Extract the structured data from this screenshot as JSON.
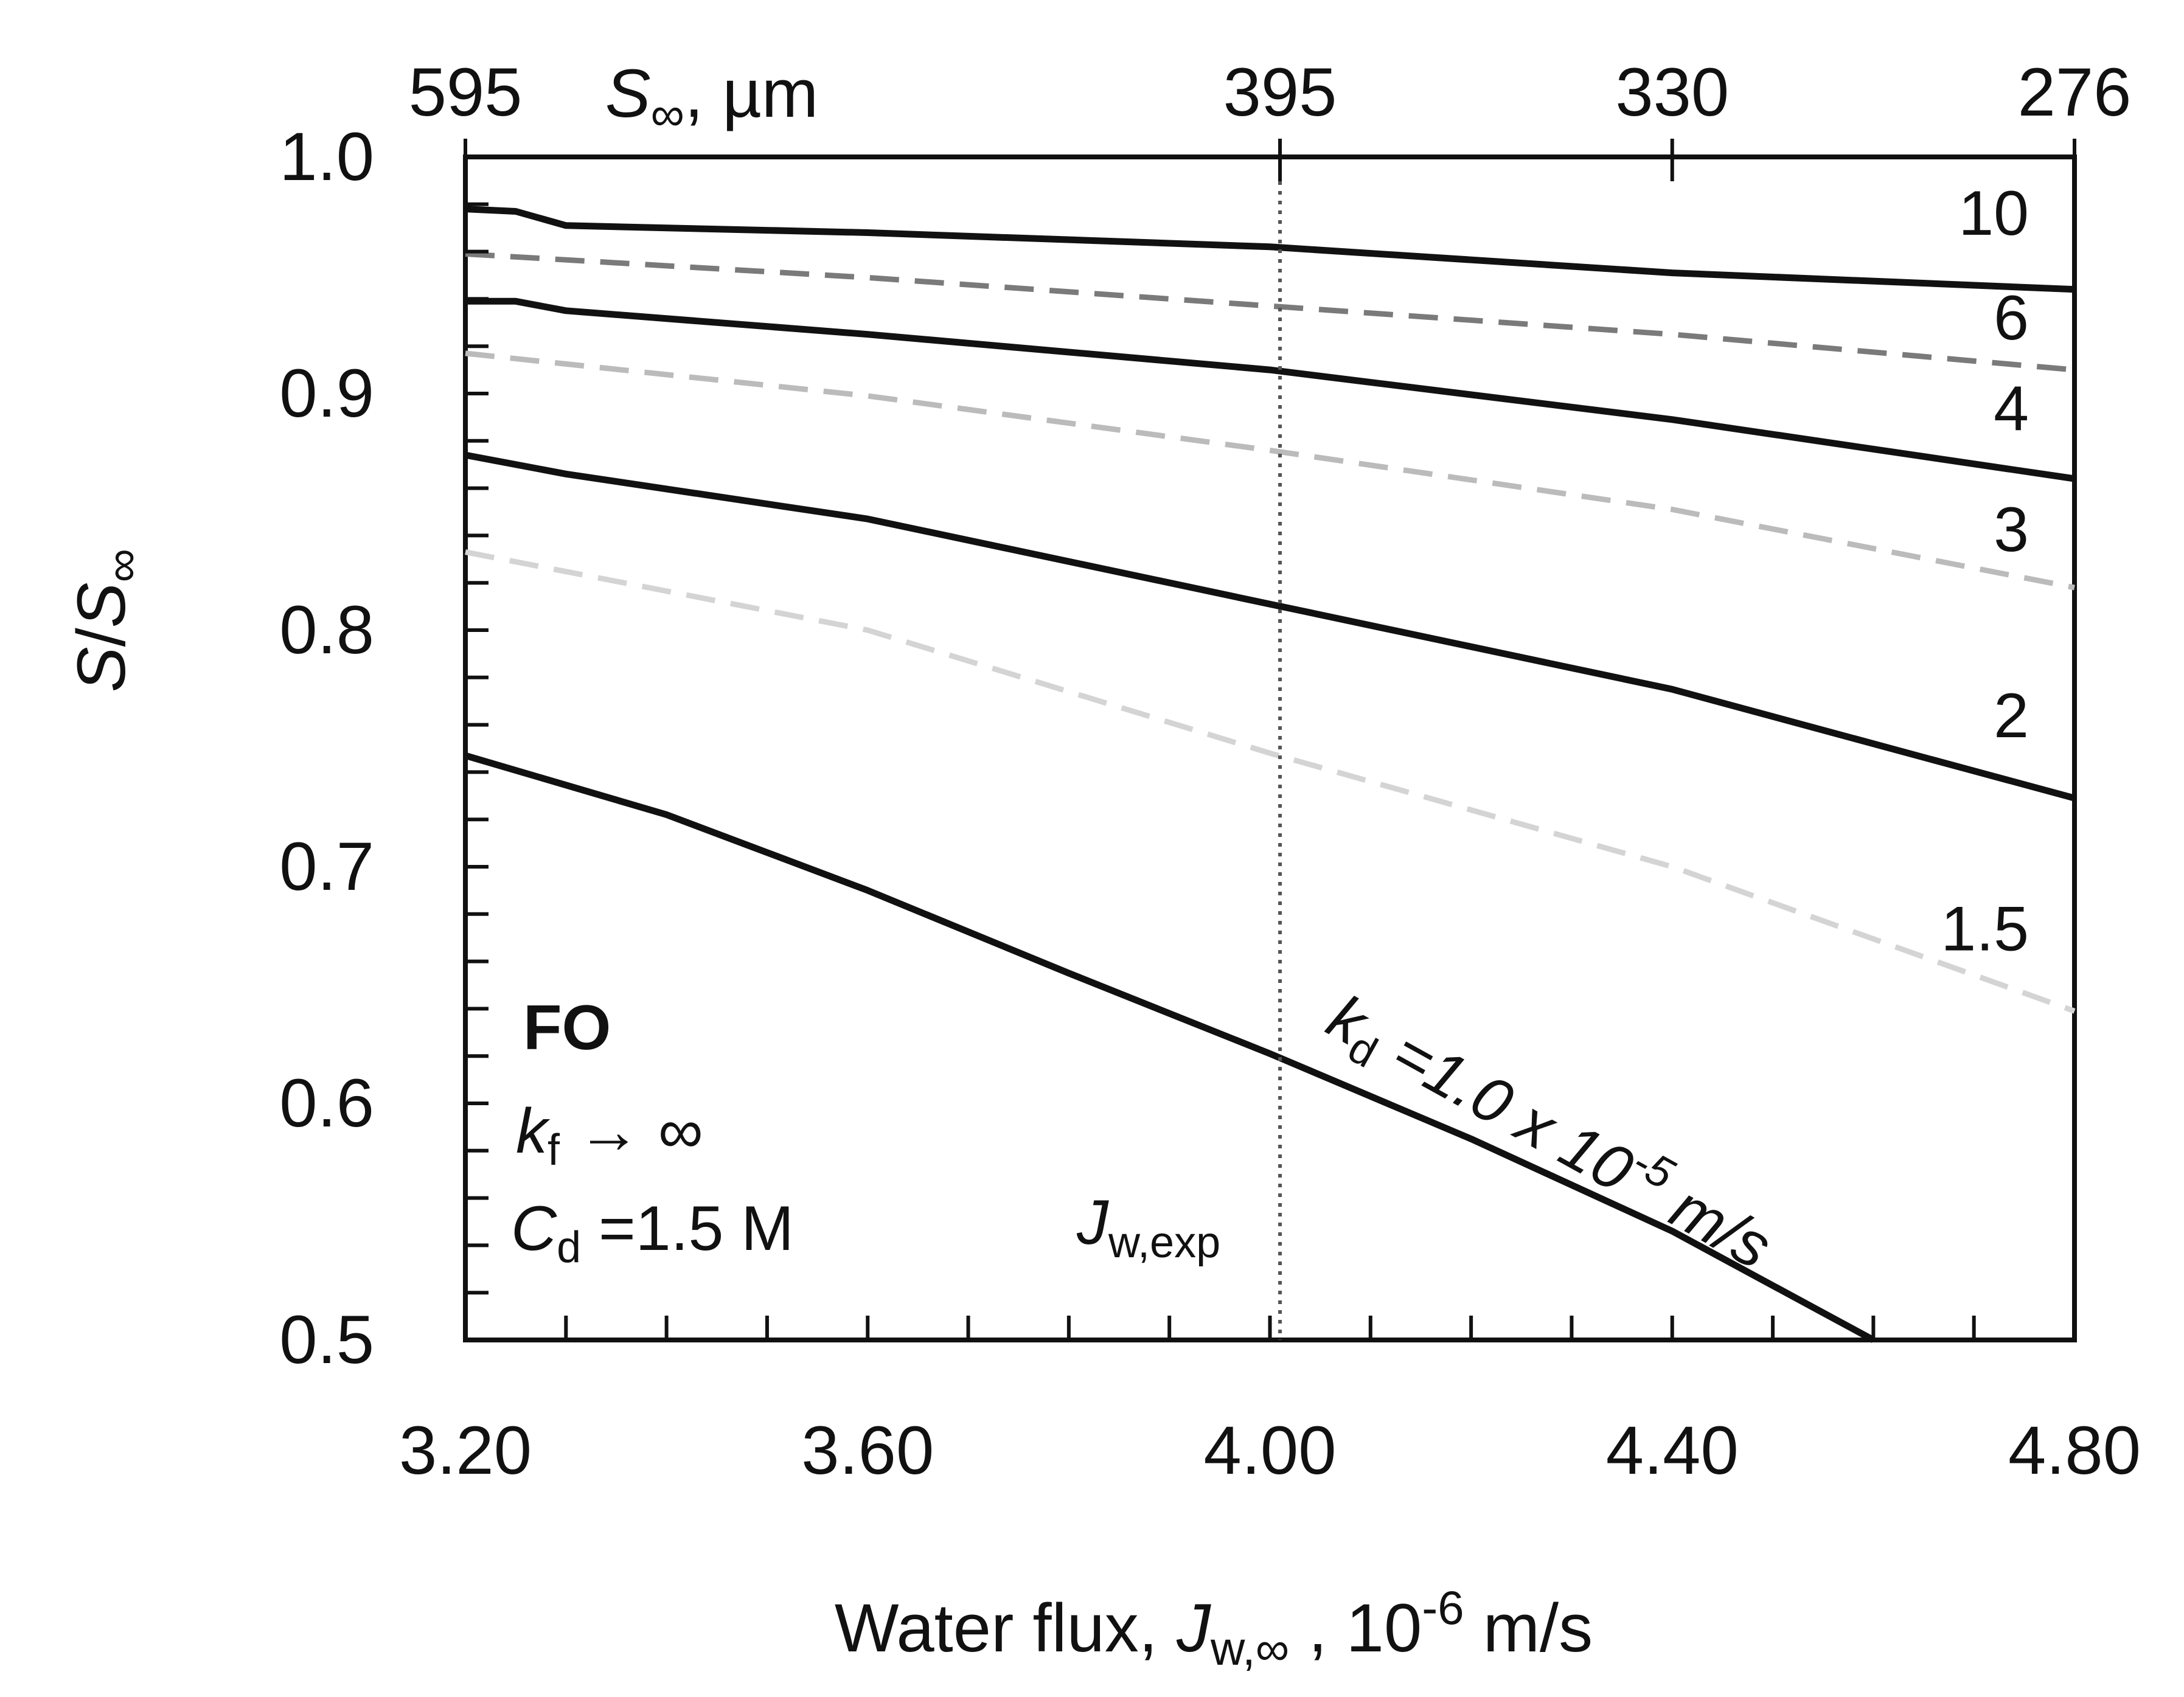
{
  "chart_data": {
    "type": "line",
    "xlabel": {
      "text": "Water flux, ",
      "var": "J",
      "sub": "w,∞",
      "tail": " , 10",
      "sup": "-6",
      "unit": " m/s"
    },
    "ylabel": {
      "var": "S",
      "slash": "/",
      "var2": "S",
      "sub": "∞"
    },
    "top_axis_label": {
      "var": "S",
      "sub": "∞",
      "unit": ", µm"
    },
    "xlim": [
      3.2,
      4.8
    ],
    "ylim": [
      0.5,
      1.0
    ],
    "x_tick_labels": [
      "3.20",
      "3.60",
      "4.00",
      "4.40",
      "4.80"
    ],
    "x_ticks": [
      3.2,
      3.6,
      4.0,
      4.4,
      4.8
    ],
    "y_tick_labels": [
      "0.5",
      "0.6",
      "0.7",
      "0.8",
      "0.9",
      "1.0"
    ],
    "y_ticks": [
      0.5,
      0.6,
      0.7,
      0.8,
      0.9,
      1.0
    ],
    "top_ticks": [
      {
        "x": 3.2,
        "label": "595"
      },
      {
        "x": 4.01,
        "label": "395"
      },
      {
        "x": 4.4,
        "label": "330"
      },
      {
        "x": 4.8,
        "label": "276"
      }
    ],
    "reference_line": {
      "x": 4.01,
      "label_var": "J",
      "label_sub": "w,exp"
    },
    "annotations": {
      "mode": "FO",
      "kf_var": "k",
      "kf_sub": "f",
      "kf_rest": " → ∞",
      "cd_var": "C",
      "cd_sub": "d",
      "cd_rest": " =1.5 M",
      "kd_var": "k",
      "kd_sub": "d",
      "kd_rest": " =1.0 x 10",
      "kd_sup": "-5",
      "kd_unit": " m/s"
    },
    "series": [
      {
        "name": "10",
        "style": "solid",
        "color": "#111111",
        "x": [
          3.2,
          3.25,
          3.3,
          3.6,
          4.0,
          4.4,
          4.8
        ],
        "y": [
          0.978,
          0.977,
          0.971,
          0.968,
          0.962,
          0.951,
          0.944
        ]
      },
      {
        "name": "6",
        "style": "dashed",
        "color": "#7a7a7a",
        "x": [
          3.2,
          3.6,
          4.0,
          4.4,
          4.8
        ],
        "y": [
          0.959,
          0.949,
          0.937,
          0.925,
          0.91
        ]
      },
      {
        "name": "4",
        "style": "solid",
        "color": "#111111",
        "x": [
          3.2,
          3.25,
          3.3,
          3.6,
          4.0,
          4.4,
          4.8
        ],
        "y": [
          0.939,
          0.939,
          0.935,
          0.925,
          0.91,
          0.889,
          0.864
        ]
      },
      {
        "name": "3",
        "style": "dashed",
        "color": "#bbbbbb",
        "x": [
          3.2,
          3.6,
          4.0,
          4.4,
          4.8
        ],
        "y": [
          0.917,
          0.899,
          0.876,
          0.851,
          0.818
        ]
      },
      {
        "name": "2",
        "style": "solid",
        "color": "#111111",
        "x": [
          3.2,
          3.3,
          3.6,
          4.0,
          4.4,
          4.8
        ],
        "y": [
          0.874,
          0.866,
          0.847,
          0.811,
          0.775,
          0.729
        ]
      },
      {
        "name": "1.5",
        "style": "dashed",
        "color": "#d4d4d4",
        "x": [
          3.2,
          3.6,
          4.0,
          4.4,
          4.8
        ],
        "y": [
          0.833,
          0.8,
          0.748,
          0.7,
          0.639
        ]
      },
      {
        "name": "1.0",
        "style": "solid",
        "color": "#111111",
        "x": [
          3.2,
          3.4,
          3.6,
          3.8,
          4.0,
          4.2,
          4.4,
          4.6
        ],
        "y": [
          0.747,
          0.722,
          0.69,
          0.655,
          0.621,
          0.585,
          0.546,
          0.5
        ]
      }
    ]
  }
}
